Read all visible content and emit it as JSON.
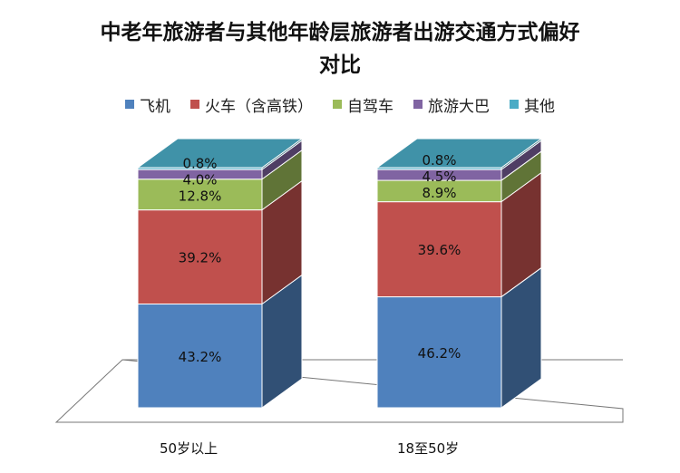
{
  "chart_data": {
    "type": "bar",
    "stacked": true,
    "three_d": true,
    "title": "中老年旅游者与其他年龄层旅游者出游交通方式偏好对比",
    "title_lines": [
      "中老年旅游者与其他年龄层旅游者出游交通方式偏好",
      "对比"
    ],
    "categories": [
      "50岁以上",
      "18至50岁"
    ],
    "series": [
      {
        "name": "飞机",
        "values": [
          43.2,
          46.2
        ],
        "labels": [
          "43.2%",
          "46.2%"
        ],
        "color": "#4f81bd"
      },
      {
        "name": "火车（含高铁）",
        "values": [
          39.2,
          39.6
        ],
        "labels": [
          "39.2%",
          "39.6%"
        ],
        "color": "#c0504d"
      },
      {
        "name": "自驾车",
        "values": [
          12.8,
          8.9
        ],
        "labels": [
          "12.8%",
          "8.9%"
        ],
        "color": "#9bbb59"
      },
      {
        "name": "旅游大巴",
        "values": [
          4.0,
          4.5
        ],
        "labels": [
          "4.0%",
          "4.5%"
        ],
        "color": "#8064a2"
      },
      {
        "name": "其他",
        "values": [
          0.8,
          0.8
        ],
        "labels": [
          "0.8%",
          "0.8%"
        ],
        "color": "#4bacc6"
      }
    ],
    "ylim": [
      0,
      100
    ],
    "legend_position": "top",
    "grid": false
  }
}
